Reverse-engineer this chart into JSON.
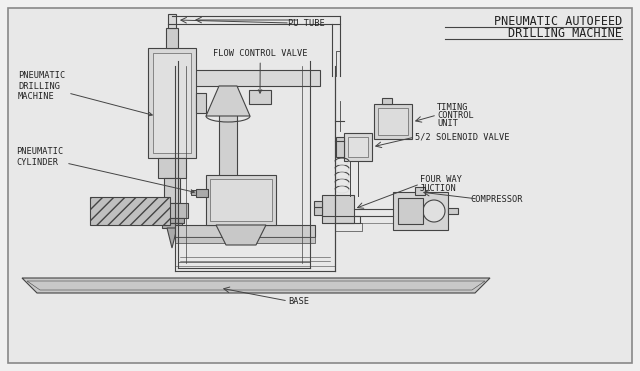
{
  "title_line1": "PNEUMATIC AUTOFEED",
  "title_line2": "DRILLING MACHINE",
  "bg_color": "#f0f0f0",
  "drawing_bg": "#e8e8e8",
  "line_color": "#444444",
  "light_gray": "#cccccc",
  "mid_gray": "#aaaaaa",
  "labels": {
    "pneumatic_drilling_machine": "PNEUMATIC\nDRILLING\nMACHINE",
    "pu_tube": "PU TUBE",
    "flow_control_valve": "FLOW CONTROL VALVE",
    "pneumatic_cylinder": "PNEUMATIC\nCYLINDER",
    "timing_control_unit": "TIMING\nCONTROL\nUNIT",
    "solenoid_valve": "5/2 SOLENOID VALVE",
    "four_way_junction": "FOUR WAY\nJUCTION",
    "compressor": "COMPRESSOR",
    "base": "BASE"
  }
}
